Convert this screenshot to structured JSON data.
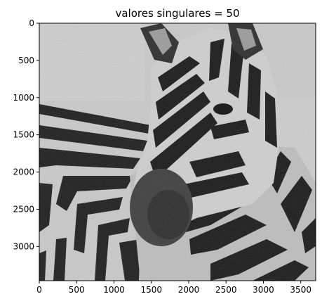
{
  "chart_data": {
    "type": "image",
    "title": "valores singulares = 50",
    "subject": "grayscale zebra head and neck",
    "colormap": "gray",
    "x_ticks": [
      "0",
      "500",
      "1000",
      "1500",
      "2000",
      "2500",
      "3000",
      "3500"
    ],
    "y_ticks": [
      "0",
      "500",
      "1000",
      "1500",
      "2000",
      "2500",
      "3000"
    ],
    "xlim": [
      0,
      3700
    ],
    "ylim": [
      3460,
      0
    ]
  }
}
